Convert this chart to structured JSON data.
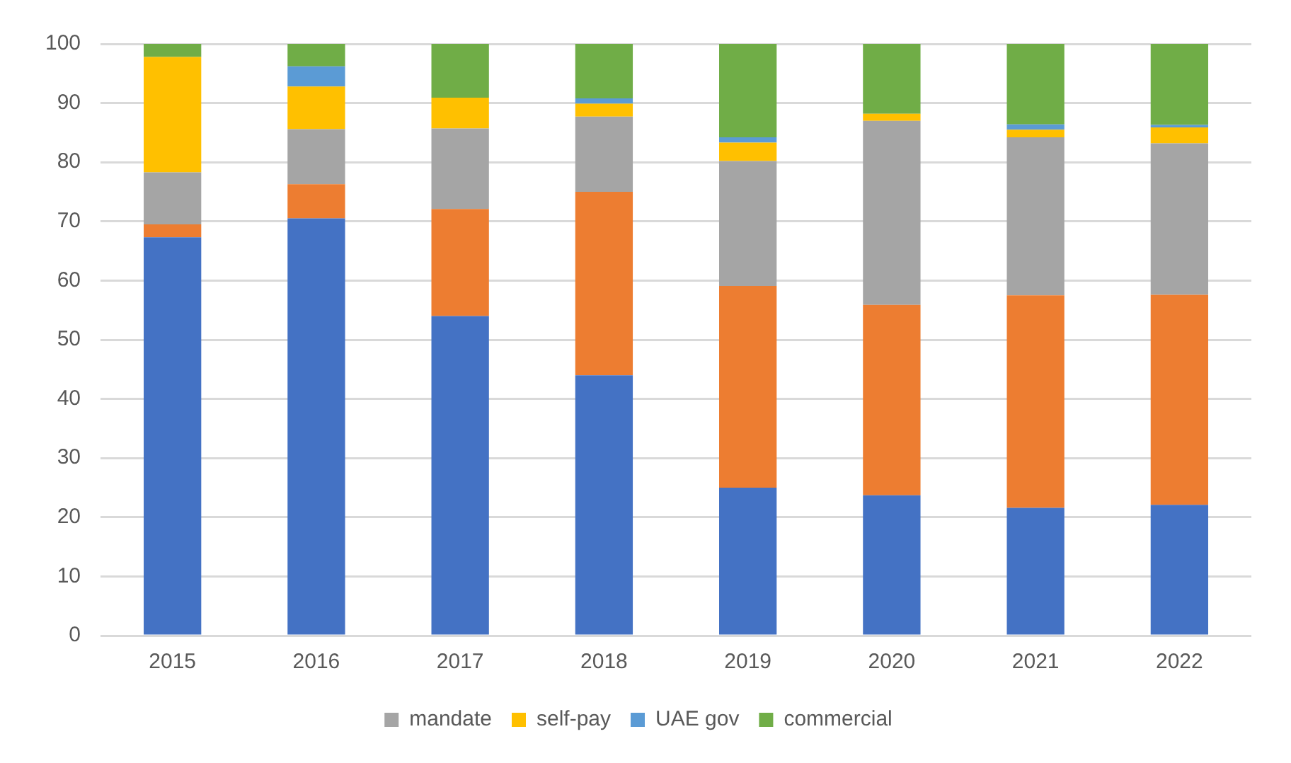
{
  "chart_data": {
    "type": "bar",
    "stacked": true,
    "categories": [
      "2015",
      "2016",
      "2017",
      "2018",
      "2019",
      "2020",
      "2021",
      "2022"
    ],
    "series": [
      {
        "color": "#4472c4",
        "values": [
          67.3,
          70.5,
          54,
          44,
          25,
          23.7,
          21.6,
          22.1
        ]
      },
      {
        "color": "#ed7d31",
        "values": [
          2.2,
          5.8,
          18.1,
          31,
          34.1,
          32.2,
          35.9,
          35.5
        ]
      },
      {
        "name": "mandate",
        "color": "#a5a5a5",
        "values": [
          8.8,
          9.3,
          13.6,
          12.7,
          21.1,
          31.1,
          26.7,
          25.6
        ]
      },
      {
        "name": "self-pay",
        "color": "#ffc000",
        "values": [
          19.5,
          7.2,
          5.2,
          2.2,
          3.1,
          1.2,
          1.3,
          2.7
        ]
      },
      {
        "name": "UAE gov",
        "color": "#5b9bd5",
        "values": [
          0,
          3.4,
          0,
          0.9,
          0.9,
          0,
          0.9,
          0.4
        ]
      },
      {
        "name": "commercial",
        "color": "#70ad47",
        "values": [
          2.2,
          3.8,
          9.1,
          9.2,
          15.8,
          11.8,
          13.6,
          13.7
        ]
      }
    ],
    "ylim": [
      0,
      100
    ],
    "yticks": [
      0,
      10,
      20,
      30,
      40,
      50,
      60,
      70,
      80,
      90,
      100
    ],
    "grid": "y",
    "legend": "bottom"
  }
}
